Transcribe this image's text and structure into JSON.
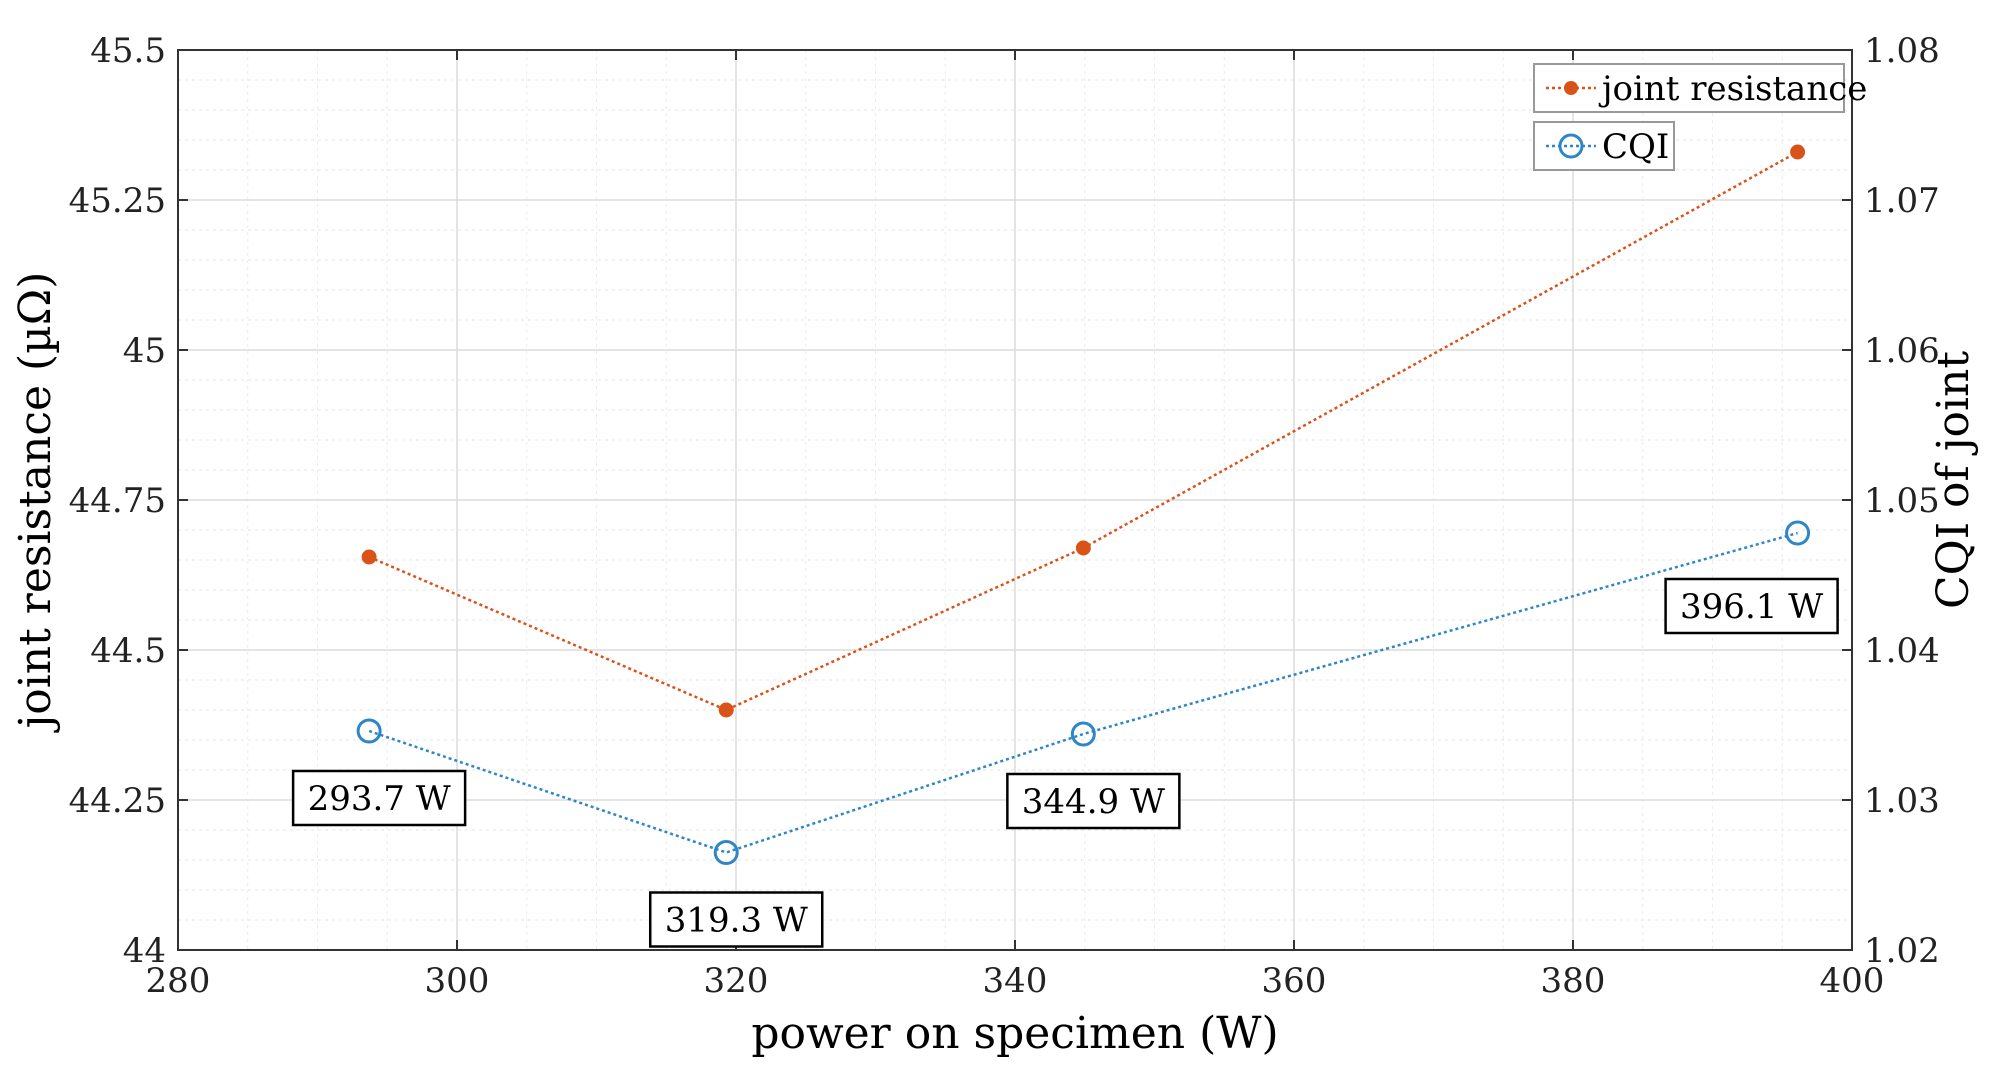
{
  "chart_data": {
    "type": "line",
    "title": "",
    "xlabel": "power on specimen (W)",
    "ylabel_left": "joint resistance (µΩ)",
    "ylabel_right": "CQI of joint",
    "xlim": [
      280,
      400
    ],
    "ylim_left": [
      44,
      45.5
    ],
    "ylim_right": [
      1.02,
      1.08
    ],
    "x_ticks": [
      "280",
      "300",
      "320",
      "340",
      "360",
      "380",
      "400"
    ],
    "y_left_ticks": [
      "44",
      "44.25",
      "44.5",
      "44.75",
      "45",
      "45.25",
      "45.5"
    ],
    "y_right_ticks": [
      "1.02",
      "1.03",
      "1.04",
      "1.05",
      "1.06",
      "1.07",
      "1.08"
    ],
    "grid": true,
    "legend_position": "top-right",
    "series": [
      {
        "name": "joint resistance",
        "axis": "left",
        "color": "#D95319",
        "marker": "filled-circle",
        "x": [
          293.7,
          319.3,
          344.9,
          396.1
        ],
        "values": [
          44.655,
          44.4,
          44.67,
          45.33
        ]
      },
      {
        "name": "CQI",
        "axis": "right",
        "color": "#2E86C9",
        "marker": "open-circle",
        "x": [
          293.7,
          319.3,
          344.9,
          396.1
        ],
        "values": [
          1.0346,
          1.0265,
          1.0344,
          1.0478
        ]
      }
    ],
    "annotations": [
      {
        "text": "293.7 W",
        "series": "CQI",
        "point": 0,
        "place": "below"
      },
      {
        "text": "319.3 W",
        "series": "CQI",
        "point": 1,
        "place": "below"
      },
      {
        "text": "344.9 W",
        "series": "CQI",
        "point": 2,
        "place": "below"
      },
      {
        "text": "396.1 W",
        "series": "CQI",
        "point": 3,
        "place": "below-left"
      }
    ]
  }
}
